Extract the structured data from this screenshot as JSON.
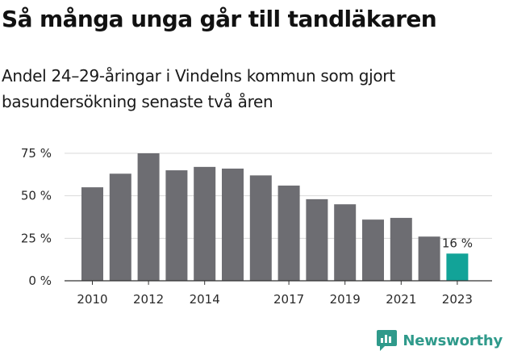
{
  "header": {
    "title": "Så många unga går till tandläkaren",
    "subtitle": "Andel 24–29-åringar i Vindelns kommun som gjort basundersökning senaste två åren"
  },
  "brand": {
    "name": "Newsworthy",
    "color": "#2f9a8b",
    "icon": "chart-bubble-icon"
  },
  "colors": {
    "bar": "#6d6d72",
    "highlight": "#12a398",
    "grid": "#d9d9d9",
    "axis": "#333333"
  },
  "chart_data": {
    "type": "bar",
    "title": "Så många unga går till tandläkaren",
    "subtitle": "Andel 24–29-åringar i Vindelns kommun som gjort basundersökning senaste två åren",
    "categories": [
      "2010",
      "2011",
      "2012",
      "2013",
      "2014",
      "2015",
      "2016",
      "2017",
      "2018",
      "2019",
      "2020",
      "2021",
      "2022",
      "2023"
    ],
    "values": [
      55,
      63,
      75,
      65,
      67,
      66,
      62,
      56,
      48,
      45,
      36,
      37,
      26,
      16
    ],
    "xlabel": "",
    "ylabel": "",
    "ylim": [
      0,
      75
    ],
    "yticks": [
      0,
      25,
      50,
      75
    ],
    "ytick_labels": [
      "0 %",
      "25 %",
      "50 %",
      "75 %"
    ],
    "xtick_labels": [
      "2010",
      "2012",
      "2014",
      "2017",
      "2019",
      "2021",
      "2023"
    ],
    "highlight_category": "2023",
    "annotations": [
      {
        "category": "2023",
        "text": "16 %"
      }
    ],
    "grid": true,
    "legend": "none"
  }
}
